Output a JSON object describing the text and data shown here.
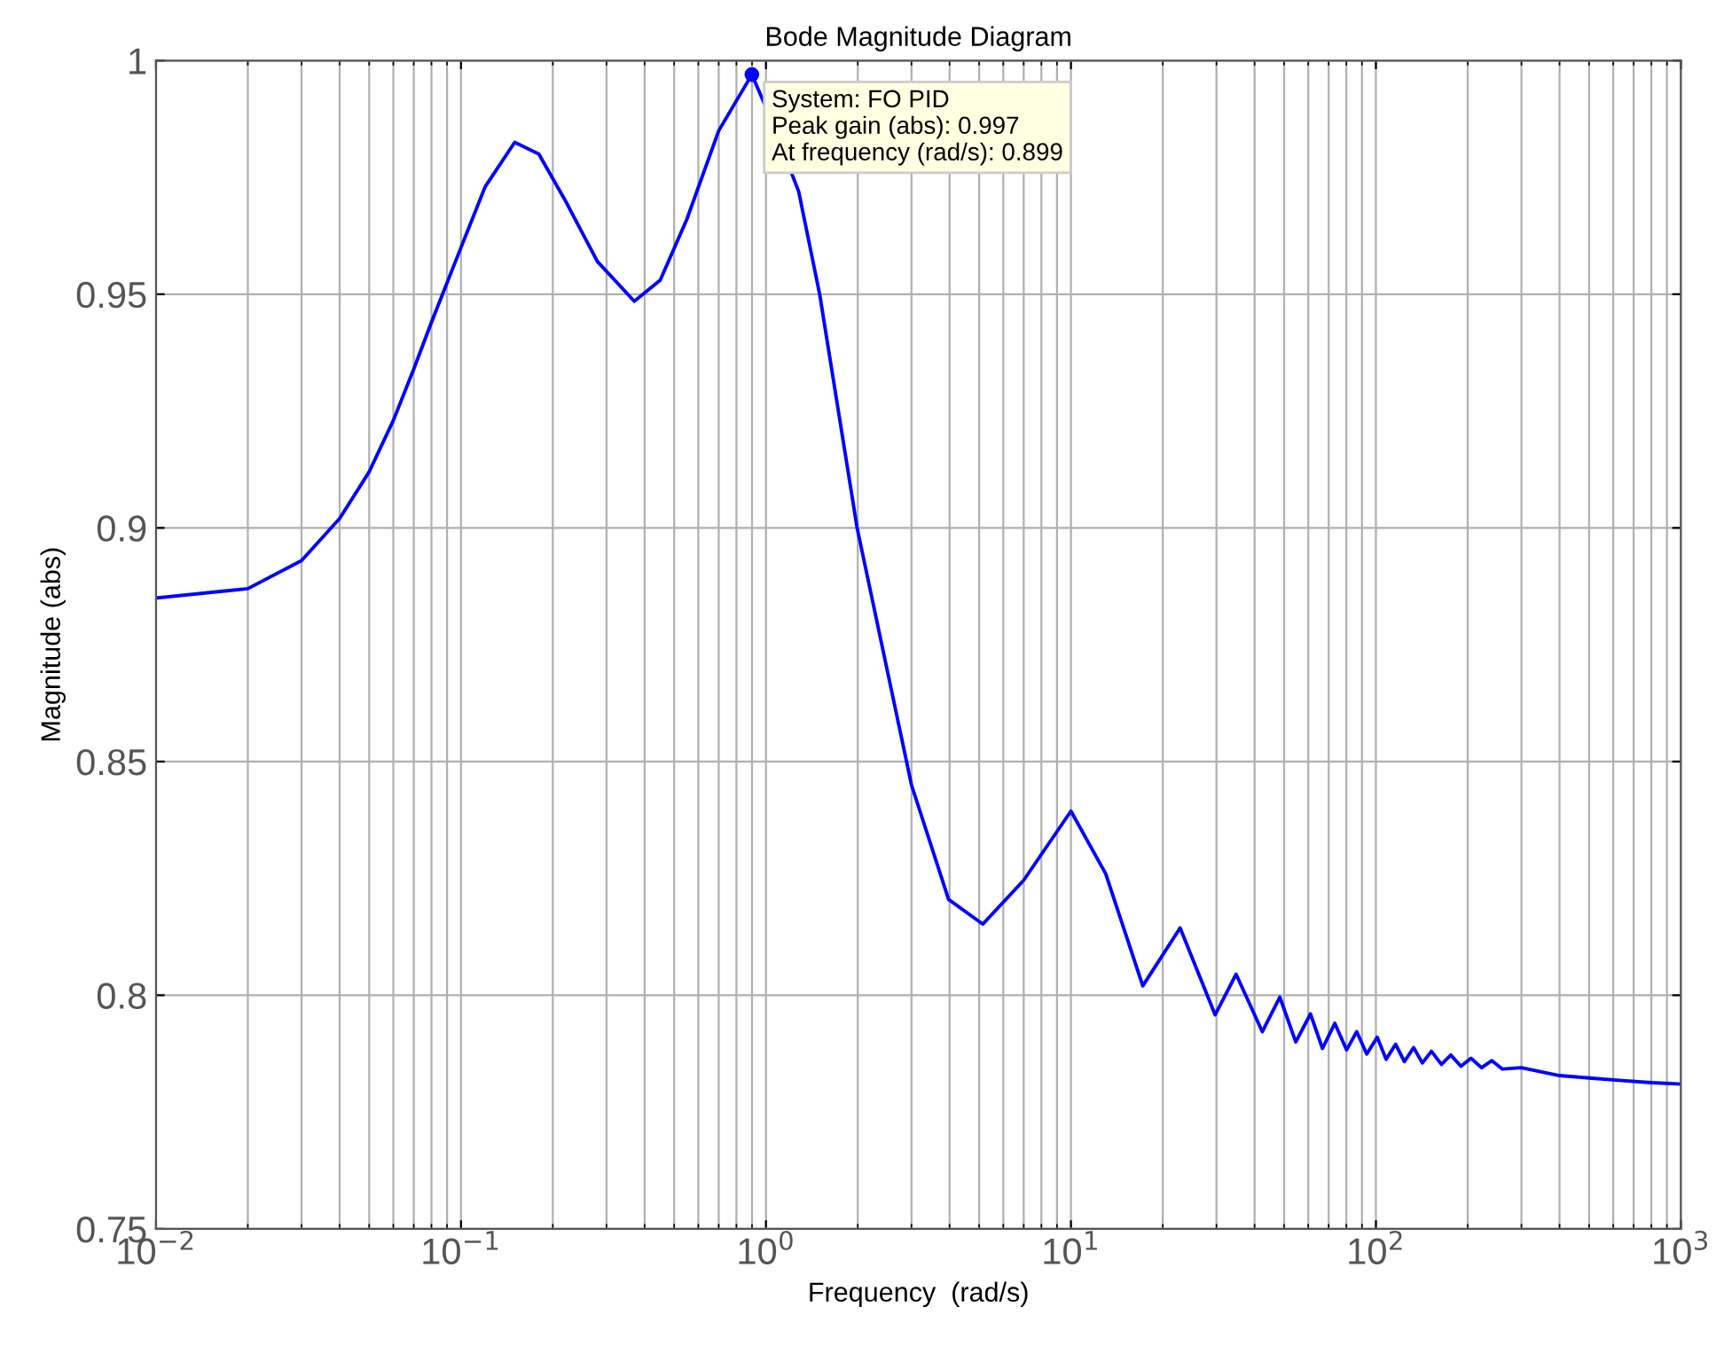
{
  "chart_data": {
    "type": "line",
    "title": "Bode Magnitude Diagram",
    "xlabel": "Frequency  (rad/s)",
    "ylabel": "Magnitude (abs)",
    "log": "x",
    "grid": true,
    "marker": "none",
    "line_style": "solid",
    "xlim": [
      0.01,
      1000
    ],
    "ylim": [
      0.75,
      1
    ],
    "xticks": [
      {
        "value": 0.01,
        "label": "10$^{−2}$"
      },
      {
        "value": 0.1,
        "label": "10$^{−1}$"
      },
      {
        "value": 1,
        "label": "10$^{0}$"
      },
      {
        "value": 10,
        "label": "10$^{1}$"
      },
      {
        "value": 100,
        "label": "10$^{2}$"
      },
      {
        "value": 1000,
        "label": "10$^{3}$"
      }
    ],
    "yticks": [
      0.75,
      0.8,
      0.85,
      0.9,
      0.95,
      1
    ],
    "series": [
      {
        "color": "#0000ff",
        "x": [
          0.01,
          0.02,
          0.03,
          0.04,
          0.05,
          0.06,
          0.07,
          0.08,
          0.1,
          0.12,
          0.15,
          0.18,
          0.22,
          0.28,
          0.37,
          0.45,
          0.55,
          0.7,
          0.899,
          1.0,
          1.28,
          1.5,
          1.99,
          3.0,
          3.97,
          5.14,
          7.0,
          10.0,
          13,
          17.2,
          22.8,
          29.7,
          34.8,
          42.4,
          48.4,
          54.6,
          61,
          66.8,
          73.3,
          80.1,
          86.5,
          93.3,
          101,
          108,
          116,
          124,
          133,
          142,
          152,
          164,
          176,
          190,
          205,
          222,
          240,
          260,
          300,
          400,
          500,
          626,
          800,
          1000
        ],
        "values": [
          0.885,
          0.887,
          0.893,
          0.902,
          0.912,
          0.923,
          0.934,
          0.944,
          0.96,
          0.973,
          0.9825,
          0.98,
          0.97,
          0.957,
          0.9485,
          0.953,
          0.966,
          0.985,
          0.997,
          0.99,
          0.972,
          0.95,
          0.9,
          0.845,
          0.8205,
          0.8152,
          0.8246,
          0.8394,
          0.826,
          0.802,
          0.8144,
          0.7958,
          0.8045,
          0.7922,
          0.7996,
          0.79,
          0.796,
          0.7886,
          0.794,
          0.7883,
          0.7922,
          0.7874,
          0.791,
          0.7863,
          0.7895,
          0.7858,
          0.7888,
          0.7855,
          0.788,
          0.7852,
          0.7872,
          0.7848,
          0.7865,
          0.7845,
          0.786,
          0.7842,
          0.7845,
          0.7828,
          0.7823,
          0.7818,
          0.7813,
          0.781
        ]
      }
    ],
    "annotations": [
      {
        "text": "System: FO PID\nPeak gain (abs): 0.997\nAt frequency (rad/s): 0.899",
        "x": 0.899,
        "y": 0.997
      }
    ]
  }
}
